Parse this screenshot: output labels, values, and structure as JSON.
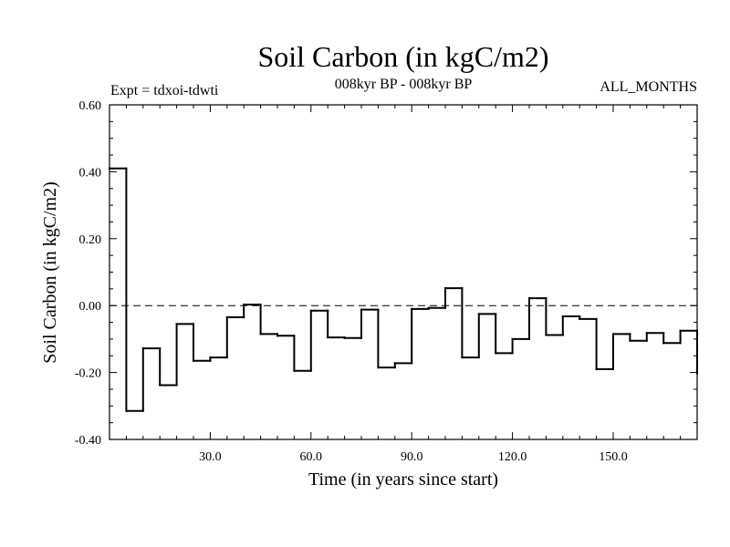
{
  "chart_data": {
    "type": "line",
    "style": "step",
    "title": "Soil Carbon (in kgC/m2)",
    "subtitle": "008kyr BP - 008kyr BP",
    "expt_label": "Expt = tdxoi-tdwti",
    "months_label": "ALL_MONTHS",
    "xlabel": "Time (in years since start)",
    "ylabel": "Soil Carbon (in kgC/m2)",
    "xlim": [
      0,
      175
    ],
    "ylim": [
      -0.4,
      0.6
    ],
    "x_ticks": [
      30,
      60,
      90,
      120,
      150
    ],
    "x_tick_labels": [
      "30.0",
      "60.0",
      "90.0",
      "120.0",
      "150.0"
    ],
    "y_ticks": [
      -0.4,
      -0.2,
      0.0,
      0.2,
      0.4,
      0.6
    ],
    "y_tick_labels": [
      "-0.40",
      "-0.20",
      "0.00",
      "0.20",
      "0.40",
      "0.60"
    ],
    "zero_line": "dashed",
    "step_width": 5,
    "series": [
      {
        "name": "Soil Carbon",
        "x": [
          0,
          5,
          10,
          15,
          20,
          25,
          30,
          35,
          40,
          45,
          50,
          55,
          60,
          65,
          70,
          75,
          80,
          85,
          90,
          95,
          100,
          105,
          110,
          115,
          120,
          125,
          130,
          135,
          140,
          145,
          150,
          155,
          160,
          165,
          170
        ],
        "values": [
          0.41,
          -0.315,
          -0.128,
          -0.238,
          -0.055,
          -0.165,
          -0.155,
          -0.035,
          0.003,
          -0.085,
          -0.09,
          -0.195,
          -0.015,
          -0.095,
          -0.097,
          -0.012,
          -0.185,
          -0.172,
          -0.01,
          -0.007,
          0.052,
          -0.155,
          -0.025,
          -0.142,
          -0.1,
          0.022,
          -0.088,
          -0.032,
          -0.04,
          -0.19,
          -0.085,
          -0.105,
          -0.082,
          -0.112,
          -0.075
        ]
      }
    ],
    "final_drop": -0.205
  },
  "colors": {
    "line": "#000000",
    "background": "#ffffff"
  }
}
